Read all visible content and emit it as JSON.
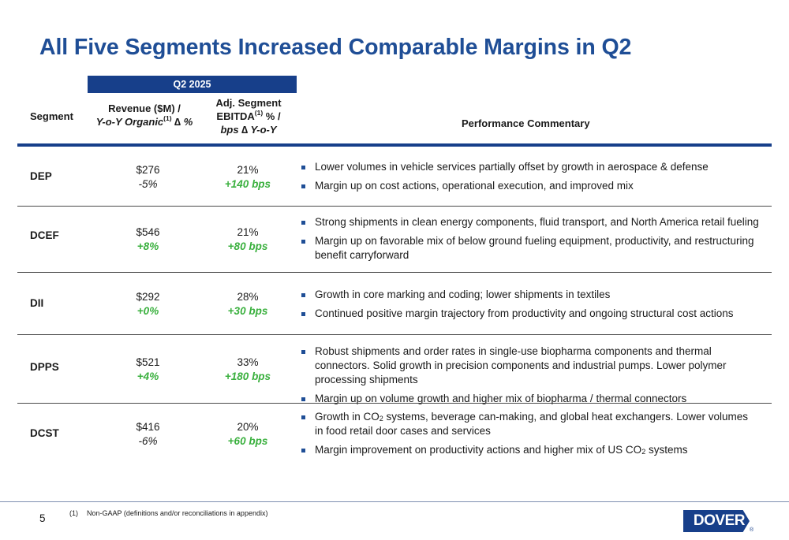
{
  "title": "All Five Segments Increased Comparable Margins in Q2",
  "period_band": "Q2 2025",
  "headers": {
    "segment": "Segment",
    "revenue_line1": "Revenue ($M) /",
    "revenue_line2": "Y-o-Y Organic",
    "revenue_sup": "(1)",
    "revenue_line2_suffix": " ∆ %",
    "ebitda_line1": "Adj. Segment",
    "ebitda_line2": "EBITDA",
    "ebitda_sup": "(1)",
    "ebitda_line2_suffix": " % /",
    "ebitda_line3": "bps ∆ Y-o-Y",
    "commentary": "Performance Commentary"
  },
  "rows": [
    {
      "segment": "DEP",
      "revenue": "$276",
      "organic": "-5%",
      "margin": "21%",
      "bps": "+140 bps",
      "commentary": [
        "Lower volumes in vehicle services partially offset by growth in aerospace & defense",
        "Margin up on cost actions, operational execution, and improved mix"
      ]
    },
    {
      "segment": "DCEF",
      "revenue": "$546",
      "organic": "+8%",
      "margin": "21%",
      "bps": "+80 bps",
      "commentary": [
        "Strong shipments in clean energy components, fluid transport, and North America retail fueling",
        "Margin up on favorable mix of below ground fueling equipment, productivity, and restructuring benefit carryforward"
      ]
    },
    {
      "segment": "DII",
      "revenue": "$292",
      "organic": "+0%",
      "margin": "28%",
      "bps": "+30 bps",
      "commentary": [
        "Growth in core marking and coding; lower shipments in textiles",
        "Continued positive margin trajectory from productivity and ongoing structural cost actions"
      ]
    },
    {
      "segment": "DPPS",
      "revenue": "$521",
      "organic": "+4%",
      "margin": "33%",
      "bps": "+180 bps",
      "commentary": [
        "Robust shipments and order rates in single-use biopharma components and thermal connectors. Solid growth in precision components and industrial pumps. Lower polymer processing shipments",
        "Margin up on volume growth and higher mix of biopharma / thermal connectors"
      ]
    },
    {
      "segment": "DCST",
      "revenue": "$416",
      "organic": "-6%",
      "margin": "20%",
      "bps": "+60 bps",
      "commentary_5a_pre": "Growth in CO",
      "commentary_5a_sub": "2",
      "commentary_5a_post": " systems, beverage can-making, and global heat exchangers. Lower volumes in food retail door cases and services",
      "commentary_5b_pre": "Margin improvement on productivity actions and higher mix of US CO",
      "commentary_5b_sub": "2",
      "commentary_5b_post": " systems"
    }
  ],
  "footer": {
    "page_number": "5",
    "footnote_mark": "(1)",
    "footnote_text": "Non-GAAP (definitions and/or reconciliations in appendix)"
  },
  "logo": {
    "text": "DOVER",
    "reg": "®"
  },
  "colors": {
    "brand_blue": "#173f8a",
    "title_blue": "#1f4e96",
    "positive_green": "#3ab03e"
  }
}
